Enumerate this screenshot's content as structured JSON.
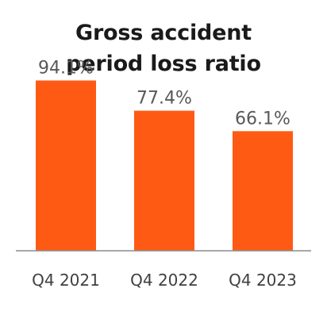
{
  "chart_data": {
    "type": "bar",
    "title_lines": [
      "Gross accident",
      "period loss ratio"
    ],
    "categories": [
      "Q4 2021",
      "Q4 2022",
      "Q4 2023"
    ],
    "values": [
      94.1,
      77.4,
      66.1
    ],
    "value_labels": [
      "94.1%",
      "77.4%",
      "66.1%"
    ],
    "unit": "%",
    "ylim": [
      0,
      100
    ],
    "grid": false,
    "legend": "none",
    "bar_color": "#ff5a14",
    "axis_color": "#8c8c8c"
  }
}
